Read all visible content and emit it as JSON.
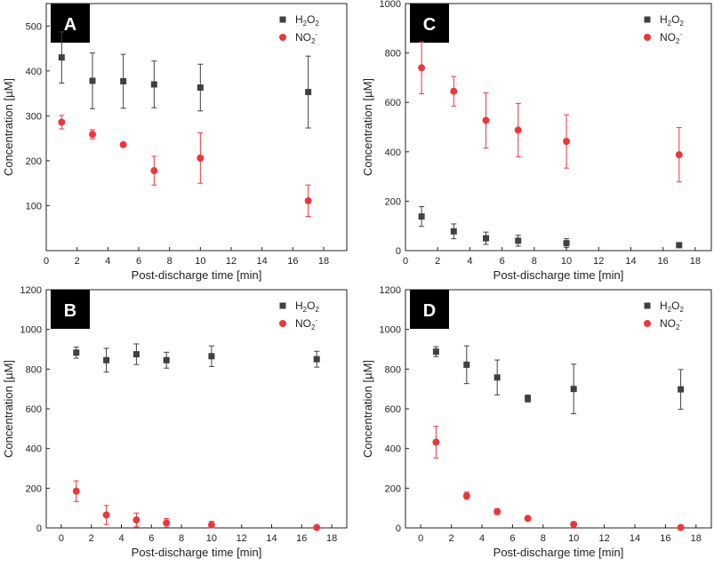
{
  "figure_title": "",
  "chart_data": [
    {
      "panel_label": "A",
      "type": "scatter",
      "xlabel": "Post-discharge time [min]",
      "ylabel": "Concentration [µM]",
      "xlim": [
        0,
        19.5
      ],
      "ylim": [
        0,
        550
      ],
      "xticks": [
        0,
        2,
        4,
        6,
        8,
        10,
        12,
        14,
        16,
        18
      ],
      "yticks": [
        100,
        200,
        300,
        400,
        500
      ],
      "legend_position": "top-right",
      "series": [
        {
          "name": "H2O2",
          "legend_main": "H",
          "legend_sub1": "2",
          "legend_mid": "O",
          "legend_sub2": "2",
          "legend_sup": "",
          "marker": "square",
          "color": "#404040",
          "x": [
            1,
            3,
            5,
            7,
            10,
            17
          ],
          "y": [
            430,
            378,
            377,
            370,
            363,
            353
          ],
          "err": [
            57,
            62,
            60,
            52,
            52,
            80
          ]
        },
        {
          "name": "NO2-",
          "legend_main": "NO",
          "legend_sub1": "",
          "legend_mid": "",
          "legend_sub2": "2",
          "legend_sup": "-",
          "marker": "circle",
          "color": "#e8383d",
          "x": [
            1,
            3,
            5,
            7,
            10,
            17
          ],
          "y": [
            286,
            259,
            236,
            178,
            206,
            111
          ],
          "err": [
            15,
            10,
            3,
            32,
            56,
            35
          ]
        }
      ]
    },
    {
      "panel_label": "C",
      "type": "scatter",
      "xlabel": "Post-discharge time [min]",
      "ylabel": "Concentration [µM]",
      "xlim": [
        0,
        19
      ],
      "ylim": [
        0,
        1000
      ],
      "xticks": [
        0,
        2,
        4,
        6,
        8,
        10,
        12,
        14,
        16,
        18
      ],
      "yticks": [
        0,
        200,
        400,
        600,
        800,
        1000
      ],
      "legend_position": "top-right",
      "series": [
        {
          "name": "H2O2",
          "legend_main": "H",
          "legend_sub1": "2",
          "legend_mid": "O",
          "legend_sub2": "2",
          "legend_sup": "",
          "marker": "square",
          "color": "#404040",
          "x": [
            1,
            3,
            5,
            7,
            10,
            17
          ],
          "y": [
            138,
            78,
            50,
            40,
            30,
            22
          ],
          "err": [
            40,
            30,
            25,
            22,
            18,
            8
          ]
        },
        {
          "name": "NO2-",
          "legend_main": "NO",
          "legend_sub1": "",
          "legend_mid": "",
          "legend_sub2": "2",
          "legend_sup": "-",
          "marker": "circle",
          "color": "#e8383d",
          "x": [
            1,
            3,
            5,
            7,
            10,
            17
          ],
          "y": [
            740,
            645,
            527,
            488,
            442,
            388
          ],
          "err": [
            105,
            60,
            112,
            108,
            108,
            110
          ]
        }
      ]
    },
    {
      "panel_label": "B",
      "type": "scatter",
      "xlabel": "Post-discharge time [min]",
      "ylabel": "Concentration [µM]",
      "xlim": [
        -1,
        19
      ],
      "ylim": [
        0,
        1200
      ],
      "xticks": [
        0,
        2,
        4,
        6,
        8,
        10,
        12,
        14,
        16,
        18
      ],
      "yticks": [
        0,
        200,
        400,
        600,
        800,
        1000,
        1200
      ],
      "legend_position": "top-right",
      "series": [
        {
          "name": "H2O2",
          "legend_main": "H",
          "legend_sub1": "2",
          "legend_mid": "O",
          "legend_sub2": "2",
          "legend_sup": "",
          "marker": "square",
          "color": "#404040",
          "x": [
            1,
            3,
            5,
            7,
            10,
            17
          ],
          "y": [
            883,
            845,
            875,
            845,
            865,
            850
          ],
          "err": [
            28,
            60,
            52,
            40,
            52,
            40
          ]
        },
        {
          "name": "NO2-",
          "legend_main": "NO",
          "legend_sub1": "",
          "legend_mid": "",
          "legend_sub2": "2",
          "legend_sup": "-",
          "marker": "circle",
          "color": "#e8383d",
          "x": [
            1,
            3,
            5,
            7,
            10,
            17
          ],
          "y": [
            185,
            65,
            40,
            25,
            15,
            2
          ],
          "err": [
            52,
            48,
            35,
            22,
            18,
            3
          ]
        }
      ]
    },
    {
      "panel_label": "D",
      "type": "scatter",
      "xlabel": "Post-discharge time [min]",
      "ylabel": "Concentration [µM]",
      "xlim": [
        -1,
        19
      ],
      "ylim": [
        0,
        1200
      ],
      "xticks": [
        0,
        2,
        4,
        6,
        8,
        10,
        12,
        14,
        16,
        18
      ],
      "yticks": [
        0,
        200,
        400,
        600,
        800,
        1000,
        1200
      ],
      "legend_position": "top-right",
      "series": [
        {
          "name": "H2O2",
          "legend_main": "H",
          "legend_sub1": "2",
          "legend_mid": "O",
          "legend_sub2": "2",
          "legend_sup": "",
          "marker": "square",
          "color": "#404040",
          "x": [
            1,
            3,
            5,
            7,
            10,
            17
          ],
          "y": [
            888,
            822,
            758,
            652,
            700,
            698
          ],
          "err": [
            25,
            95,
            88,
            18,
            125,
            100
          ]
        },
        {
          "name": "NO2-",
          "legend_main": "NO",
          "legend_sub1": "",
          "legend_mid": "",
          "legend_sub2": "2",
          "legend_sup": "-",
          "marker": "circle",
          "color": "#e8383d",
          "x": [
            1,
            3,
            5,
            7,
            10,
            17
          ],
          "y": [
            432,
            162,
            82,
            48,
            18,
            2
          ],
          "err": [
            80,
            18,
            15,
            10,
            6,
            3
          ]
        }
      ]
    }
  ]
}
